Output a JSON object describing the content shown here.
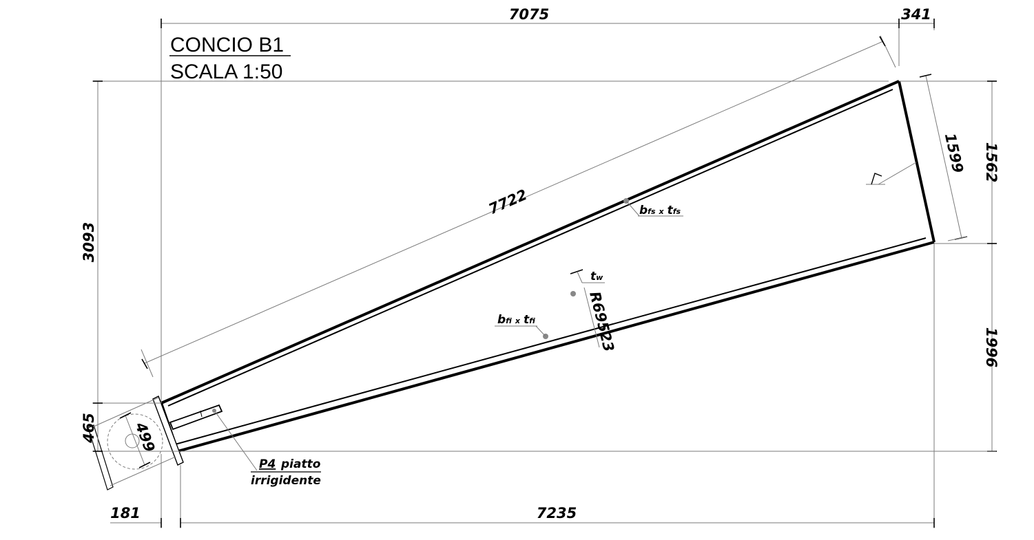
{
  "title": {
    "line1": "CONCIO B1",
    "line2": "SCALA 1:50"
  },
  "dimensions": {
    "top_length": "7075",
    "top_offset": "341",
    "diagonal": "7722",
    "right_end": "1599",
    "right_upper": "1562",
    "right_lower": "1996",
    "left_height": "3093",
    "left_small": "465",
    "pin": "499",
    "bottom_offset": "181",
    "bottom_length": "7235",
    "radius": "R69523"
  },
  "labels": {
    "top_flange_b": "b",
    "top_flange_b_sub": "fs",
    "top_flange_x": "x",
    "top_flange_t": "t",
    "top_flange_t_sub": "fs",
    "bottom_flange_b": "b",
    "bottom_flange_b_sub": "fi",
    "bottom_flange_x": "x",
    "bottom_flange_t": "t",
    "bottom_flange_t_sub": "fi",
    "web_t": "t",
    "web_t_sub": "w",
    "stiffener_code": "P4",
    "stiffener_text1": "piatto",
    "stiffener_text2": "irrigidente"
  }
}
